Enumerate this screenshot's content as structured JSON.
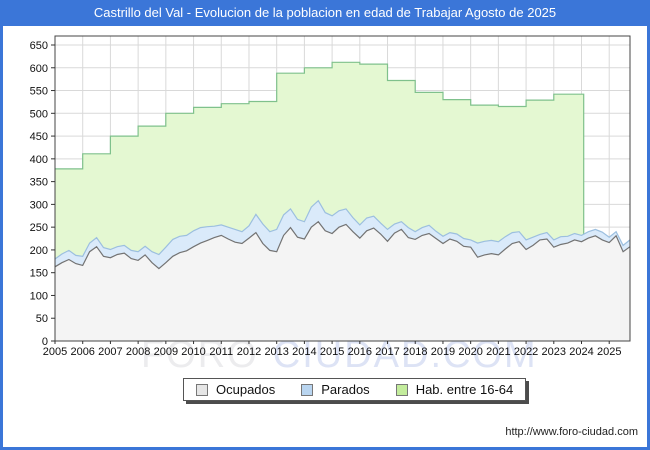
{
  "window": {
    "title": "Castrillo del Val - Evolucion de la poblacion en edad de Trabajar Agosto de 2025"
  },
  "footer": {
    "url": "http://www.foro-ciudad.com"
  },
  "watermark": {
    "part1": "FORO",
    "part2": "CIUDAD.COM"
  },
  "colors": {
    "frame_blue": "#3b76d8",
    "grid": "#d9d9d9",
    "plot_border": "#444444",
    "hab_fill": "#e4f8d2",
    "hab_stroke": "#7fc18c",
    "parados_fill": "#daeafa",
    "parados_stroke": "#9cbfdf",
    "ocupados_fill": "#f4f4f4",
    "ocupados_stroke": "#737373"
  },
  "chart_data": {
    "type": "area",
    "title": "Castrillo del Val - Evolucion de la poblacion en edad de Trabajar Agosto de 2025",
    "xlabel": "",
    "ylabel": "",
    "grid": true,
    "legend_position": "bottom",
    "x_axis": {
      "range": [
        2005,
        2025.75
      ],
      "ticks": [
        2005,
        2006,
        2007,
        2008,
        2009,
        2010,
        2011,
        2012,
        2013,
        2014,
        2015,
        2016,
        2017,
        2018,
        2019,
        2020,
        2021,
        2022,
        2023,
        2024,
        2025
      ]
    },
    "y_axis": {
      "min": 0,
      "max": 650,
      "step": 50
    },
    "legend": [
      {
        "label": "Ocupados",
        "fill": "#e6e6e6"
      },
      {
        "label": "Parados",
        "fill": "#b9d5f0"
      },
      {
        "label": "Hab. entre 16-64",
        "fill": "#c3ec9c"
      }
    ],
    "series": [
      {
        "name": "Hab. entre 16-64",
        "mode": "step",
        "stroke": "#7fc18c",
        "fill": "#e4f8d2",
        "x_start": 2005,
        "x_step": 1,
        "x_end": 2024.08,
        "values": [
          378,
          411,
          450,
          472,
          500,
          513,
          521,
          526,
          588,
          600,
          612,
          608,
          572,
          546,
          530,
          518,
          515,
          529,
          542
        ]
      },
      {
        "name": "Parados",
        "mode": "line",
        "stacked_on": "Ocupados",
        "stroke": "#9cbfdf",
        "fill": "#daeafa",
        "x_start": 2005,
        "x_step": 0.25,
        "values": [
          17,
          19,
          20,
          18,
          20,
          19,
          20,
          19,
          18,
          17,
          17,
          18,
          19,
          19,
          24,
          31,
          34,
          37,
          36,
          34,
          35,
          34,
          30,
          25,
          23,
          26,
          28,
          26,
          27,
          40,
          43,
          41,
          49,
          45,
          41,
          39,
          38,
          44,
          46,
          40,
          39,
          36,
          34,
          31,
          29,
          28,
          26,
          24,
          26,
          20,
          17,
          22,
          17,
          17,
          18,
          16,
          16,
          14,
          16,
          17,
          16,
          31,
          30,
          29,
          29,
          27,
          24,
          22,
          21,
          18,
          12,
          14,
          16,
          17,
          15,
          14,
          14,
          14,
          14,
          17,
          12,
          9,
          14,
          15
        ]
      },
      {
        "name": "Ocupados",
        "mode": "line",
        "stroke": "#737373",
        "fill": "#f4f4f4",
        "x_start": 2005,
        "x_step": 0.25,
        "values": [
          163,
          172,
          179,
          170,
          166,
          196,
          207,
          186,
          183,
          190,
          193,
          181,
          177,
          189,
          172,
          159,
          172,
          186,
          194,
          198,
          207,
          215,
          221,
          227,
          232,
          224,
          217,
          214,
          226,
          238,
          214,
          199,
          196,
          232,
          249,
          228,
          224,
          250,
          262,
          242,
          236,
          250,
          256,
          240,
          226,
          242,
          248,
          235,
          219,
          237,
          245,
          227,
          223,
          232,
          236,
          225,
          214,
          224,
          219,
          208,
          206,
          184,
          189,
          192,
          189,
          202,
          214,
          218,
          201,
          210,
          222,
          224,
          206,
          212,
          215,
          222,
          218,
          226,
          231,
          222,
          216,
          231,
          196,
          207
        ]
      }
    ]
  }
}
